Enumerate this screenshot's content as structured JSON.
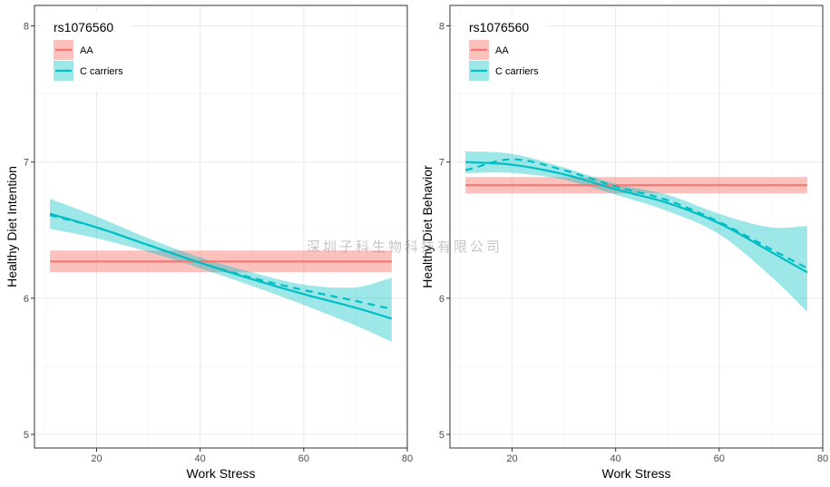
{
  "watermark": "深圳子科生物科技有限公司",
  "colors": {
    "aa": "#F8766D",
    "c": "#00BFC4"
  },
  "chart_data": [
    {
      "type": "line",
      "title": "",
      "xlabel": "Work Stress",
      "ylabel": "Healthy Diet Intention",
      "xlim": [
        8,
        80
      ],
      "ylim": [
        4.9,
        8.15
      ],
      "xticks": [
        20,
        40,
        60,
        80
      ],
      "yticks": [
        5,
        6,
        7,
        8
      ],
      "grid": true,
      "legend": {
        "title": "rs1076560",
        "position": "top-left",
        "entries": [
          "AA",
          "C carriers"
        ]
      },
      "series": [
        {
          "name": "AA",
          "color_key": "aa",
          "style": "solid",
          "x": [
            11,
            77
          ],
          "y": [
            6.27,
            6.27
          ],
          "lower": [
            6.19,
            6.19
          ],
          "upper": [
            6.35,
            6.35
          ]
        },
        {
          "name": "C carriers",
          "color_key": "c",
          "style": "solid",
          "x": [
            11,
            20,
            30,
            40,
            50,
            60,
            70,
            77
          ],
          "y": [
            6.62,
            6.52,
            6.39,
            6.26,
            6.14,
            6.03,
            5.93,
            5.85
          ],
          "lower": [
            6.51,
            6.44,
            6.34,
            6.22,
            6.09,
            5.95,
            5.8,
            5.68
          ],
          "upper": [
            6.73,
            6.6,
            6.44,
            6.3,
            6.19,
            6.1,
            6.08,
            6.15
          ]
        },
        {
          "name": "C carriers",
          "color_key": "c",
          "style": "dashed",
          "x": [
            11,
            20,
            30,
            40,
            50,
            60,
            70,
            77
          ],
          "y": [
            6.61,
            6.52,
            6.39,
            6.26,
            6.15,
            6.06,
            5.98,
            5.92
          ]
        }
      ]
    },
    {
      "type": "line",
      "title": "",
      "xlabel": "Work Stress",
      "ylabel": "Healthy Diet Behavior",
      "xlim": [
        8,
        80
      ],
      "ylim": [
        4.9,
        8.15
      ],
      "xticks": [
        20,
        40,
        60,
        80
      ],
      "yticks": [
        5,
        6,
        7,
        8
      ],
      "grid": true,
      "legend": {
        "title": "rs1076560",
        "position": "top-left",
        "entries": [
          "AA",
          "C carriers"
        ]
      },
      "series": [
        {
          "name": "AA",
          "color_key": "aa",
          "style": "solid",
          "x": [
            11,
            77
          ],
          "y": [
            6.83,
            6.83
          ],
          "lower": [
            6.77,
            6.77
          ],
          "upper": [
            6.89,
            6.89
          ]
        },
        {
          "name": "C carriers",
          "color_key": "c",
          "style": "solid",
          "x": [
            11,
            20,
            30,
            40,
            50,
            60,
            70,
            77
          ],
          "y": [
            7.0,
            6.98,
            6.91,
            6.8,
            6.7,
            6.55,
            6.34,
            6.19
          ],
          "lower": [
            6.92,
            6.92,
            6.87,
            6.76,
            6.64,
            6.47,
            6.16,
            5.9
          ],
          "upper": [
            7.08,
            7.06,
            6.96,
            6.84,
            6.76,
            6.62,
            6.52,
            6.53
          ]
        },
        {
          "name": "C carriers",
          "color_key": "c",
          "style": "dashed",
          "x": [
            11,
            20,
            30,
            40,
            50,
            60,
            70,
            77
          ],
          "y": [
            6.94,
            7.02,
            6.94,
            6.82,
            6.72,
            6.56,
            6.36,
            6.22
          ]
        }
      ]
    }
  ]
}
